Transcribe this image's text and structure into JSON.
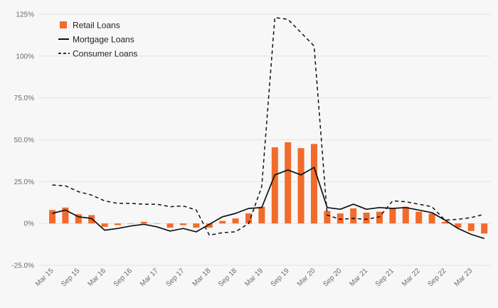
{
  "chart_data": {
    "type": "bar",
    "title": "",
    "xlabel": "",
    "ylabel": "",
    "ylim": [
      -25,
      125
    ],
    "yticks": [
      -25,
      0,
      25,
      50,
      75,
      100,
      125
    ],
    "ytick_labels": [
      "-25.0%",
      "0%",
      "25.0%",
      "50.0%",
      "75.0%",
      "100%",
      "125%"
    ],
    "legend_position": "top-left",
    "grid": true,
    "colors": {
      "retail": "#f26b2a",
      "mortgage": "#111111",
      "consumer": "#111111"
    },
    "categories": [
      "Mar 15",
      "Jun 15",
      "Sep 15",
      "Dec 15",
      "Mar 16",
      "Jun 16",
      "Sep 16",
      "Dec 16",
      "Mar 17",
      "Jun 17",
      "Sep 17",
      "Dec 17",
      "Mar 18",
      "Jun 18",
      "Sep 18",
      "Dec 18",
      "Mar 19",
      "Jun 19",
      "Sep 19",
      "Dec 19",
      "Mar 20",
      "Jun 20",
      "Sep 20",
      "Dec 20",
      "Mar 21",
      "Jun 21",
      "Sep 21",
      "Dec 21",
      "Mar 22",
      "Jun 22",
      "Sep 22",
      "Dec 22",
      "Mar 23",
      "Jun 23"
    ],
    "x_tick_labels": [
      "Mar 15",
      "Sep 15",
      "Mar 16",
      "Sep 16",
      "Mar 17",
      "Sep 17",
      "Mar 18",
      "Sep 18",
      "Mar 19",
      "Sep 19",
      "Mar 20",
      "Sep 20",
      "Mar 21",
      "Sep 21",
      "Mar 22",
      "Sep 22",
      "Mar 23"
    ],
    "series": [
      {
        "name": "Retail Loans",
        "type": "bar",
        "values": [
          8,
          9.5,
          5.5,
          5,
          -2,
          -1,
          0,
          1,
          0,
          -2.5,
          -1,
          -2.5,
          -2.5,
          1.5,
          3,
          6,
          10,
          45.5,
          48.5,
          45,
          47.5,
          7.5,
          6,
          9,
          6.5,
          7,
          9,
          10,
          7,
          6,
          1,
          -2.5,
          -4.5,
          -6
        ]
      },
      {
        "name": "Mortgage Loans",
        "type": "line",
        "dash": "solid",
        "values": [
          6,
          8,
          4,
          3,
          -4,
          -3,
          -1.5,
          -0.5,
          -2,
          -4.5,
          -3,
          -5,
          -0.5,
          4,
          6,
          9,
          9.5,
          29,
          32,
          29,
          33.5,
          9.5,
          8.5,
          11.5,
          8.5,
          9.5,
          9,
          9.5,
          8,
          6.5,
          2,
          -3,
          -6.5,
          -9
        ]
      },
      {
        "name": "Consumer Loans",
        "type": "line",
        "dash": "dashed",
        "values": [
          23,
          22.5,
          19,
          17,
          13.5,
          12,
          12,
          11.5,
          11.5,
          10,
          10.5,
          8,
          -7,
          -5.5,
          -5,
          0,
          22,
          123,
          122,
          114,
          106,
          5,
          2.5,
          3,
          2.5,
          4,
          13.5,
          13,
          11.5,
          10,
          2,
          2.5,
          3.5,
          5.5
        ]
      }
    ]
  }
}
